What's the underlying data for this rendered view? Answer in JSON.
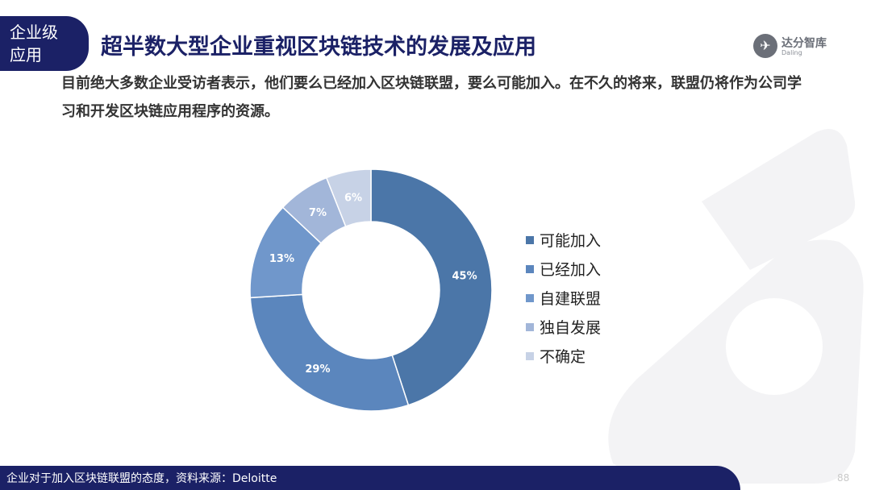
{
  "section_tag": {
    "line1": "企业级",
    "line2": "应用"
  },
  "title": "超半数大型企业重视区块链技术的发展及应用",
  "logo": {
    "name": "达分智库",
    "sub": "Daling"
  },
  "subtitle": "目前绝大多数企业受访者表示，他们要么已经加入区块链联盟，要么可能加入。在不久的将来，联盟仍将作为公司学习和开发区块链应用程序的资源。",
  "chart_data": {
    "type": "donut",
    "categories": [
      "可能加入",
      "已经加入",
      "自建联盟",
      "独自发展",
      "不确定"
    ],
    "values": [
      45,
      29,
      13,
      7,
      6
    ],
    "labels": [
      "45%",
      "29%",
      "13%",
      "7%",
      "6%"
    ],
    "colors": [
      "#4b76a8",
      "#5b86bd",
      "#7097cb",
      "#a2b6d9",
      "#c7d2e6"
    ],
    "legend_position": "right"
  },
  "footer": {
    "caption": "企业对于加入区块链联盟的态度，资料来源：Deloitte",
    "page_number": "88"
  }
}
